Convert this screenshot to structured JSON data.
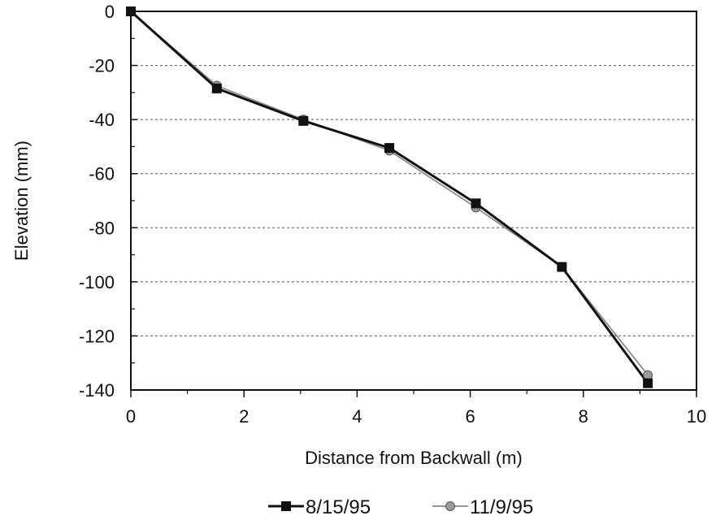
{
  "chart_data": {
    "type": "line",
    "xlabel": "Distance from Backwall (m)",
    "ylabel": "Elevation (mm)",
    "xlim": [
      0,
      10
    ],
    "ylim": [
      -140,
      0
    ],
    "x_ticks": [
      "0",
      "2",
      "4",
      "6",
      "8",
      "10"
    ],
    "y_ticks": [
      "0",
      "-20",
      "-40",
      "-60",
      "-80",
      "-100",
      "-120",
      "-140"
    ],
    "x_tick_values": [
      0,
      2,
      4,
      6,
      8,
      10
    ],
    "y_tick_values": [
      0,
      -20,
      -40,
      -60,
      -80,
      -100,
      -120,
      -140
    ],
    "grid": "horizontal dashed",
    "legend_position": "bottom-center",
    "series": [
      {
        "name": "8/15/95",
        "marker": "square",
        "color": "#111111",
        "x": [
          0,
          1.52,
          3.05,
          4.57,
          6.1,
          7.62,
          9.14
        ],
        "y": [
          0,
          -28.5,
          -40.5,
          -50.5,
          -71,
          -94.5,
          -137.5
        ]
      },
      {
        "name": "11/9/95",
        "marker": "circle",
        "color": "#8a8a8a",
        "x": [
          0,
          1.52,
          3.05,
          4.57,
          6.1,
          7.62,
          9.14
        ],
        "y": [
          0,
          -27.5,
          -40,
          -51.5,
          -72.5,
          -94.5,
          -134.5
        ]
      }
    ]
  }
}
